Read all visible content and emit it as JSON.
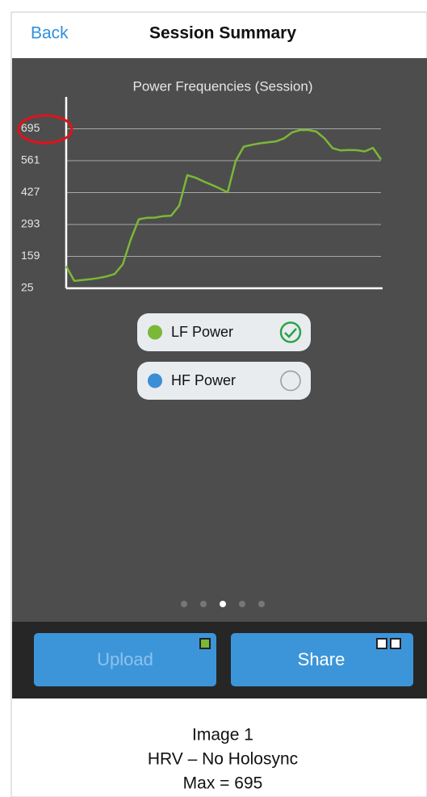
{
  "nav": {
    "back": "Back",
    "title": "Session Summary"
  },
  "chart_data": {
    "type": "line",
    "title": "Power Frequencies (Session)",
    "ylim": [
      25,
      829
    ],
    "yticks": [
      25,
      159,
      293,
      427,
      561,
      695
    ],
    "grid": true,
    "series": [
      {
        "name": "LF Power",
        "color": "#7ab837",
        "visible": true,
        "values": [
          118,
          56,
          60,
          63,
          68,
          75,
          85,
          125,
          230,
          315,
          321,
          322,
          328,
          330,
          372,
          500,
          490,
          474,
          460,
          445,
          428,
          560,
          620,
          628,
          634,
          638,
          642,
          655,
          680,
          690,
          690,
          683,
          655,
          614,
          604,
          606,
          605,
          600,
          615,
          566
        ]
      },
      {
        "name": "HF Power",
        "color": "#3a8ed6",
        "visible": false
      }
    ]
  },
  "buttons": {
    "upload": "Upload",
    "share": "Share"
  },
  "caption": [
    "Image 1",
    "HRV – No Holosync",
    "Max = 695"
  ]
}
